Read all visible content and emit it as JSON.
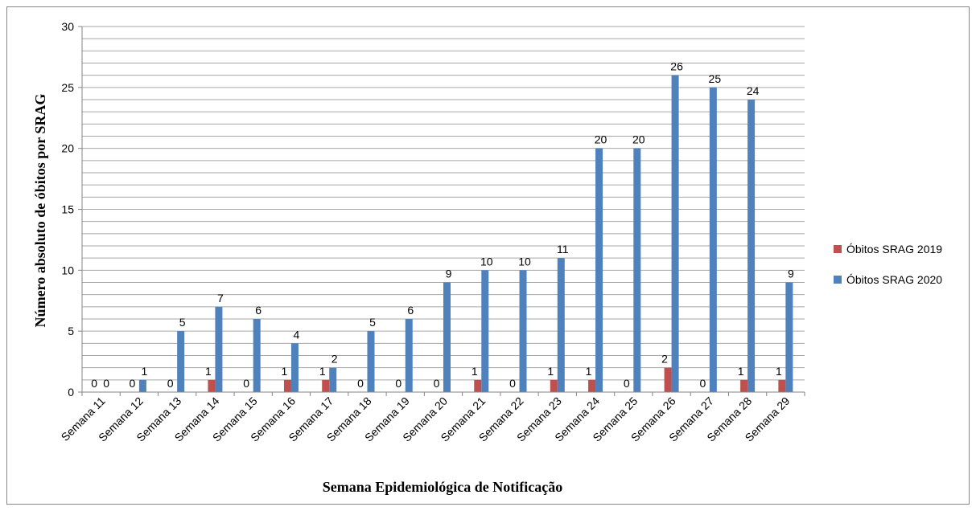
{
  "chart_data": {
    "type": "bar",
    "xlabel": "Semana Epidemiológica de Notificação",
    "ylabel": "Número absoluto de óbitos por SRAG",
    "categories": [
      "Semana 11",
      "Semana 12",
      "Semana 13",
      "Semana 14",
      "Semana 15",
      "Semana 16",
      "Semana 17",
      "Semana 18",
      "Semana 19",
      "Semana 20",
      "Semana 21",
      "Semana 22",
      "Semana 23",
      "Semana 24",
      "Semana 25",
      "Semana 26",
      "Semana 27",
      "Semana 28",
      "Semana 29"
    ],
    "series": [
      {
        "name": "Óbitos SRAG 2019",
        "color": "#c0504d",
        "values": [
          0,
          0,
          0,
          1,
          0,
          1,
          1,
          0,
          0,
          0,
          1,
          0,
          1,
          1,
          0,
          2,
          0,
          1,
          1
        ]
      },
      {
        "name": "Óbitos SRAG 2020",
        "color": "#4f81bd",
        "values": [
          0,
          1,
          5,
          7,
          6,
          4,
          2,
          5,
          6,
          9,
          10,
          10,
          11,
          20,
          20,
          26,
          25,
          24,
          9
        ]
      }
    ],
    "ylim": [
      0,
      30
    ],
    "yticks": [
      0,
      5,
      10,
      15,
      20,
      25,
      30
    ],
    "ygrid": [
      0,
      1,
      2,
      3,
      4,
      5,
      6,
      7,
      8,
      9,
      10,
      11,
      12,
      13,
      14,
      15,
      16,
      17,
      18,
      19,
      20,
      21,
      22,
      23,
      24,
      25,
      26,
      27,
      28,
      29,
      30
    ],
    "grid": true,
    "legend": "right"
  }
}
